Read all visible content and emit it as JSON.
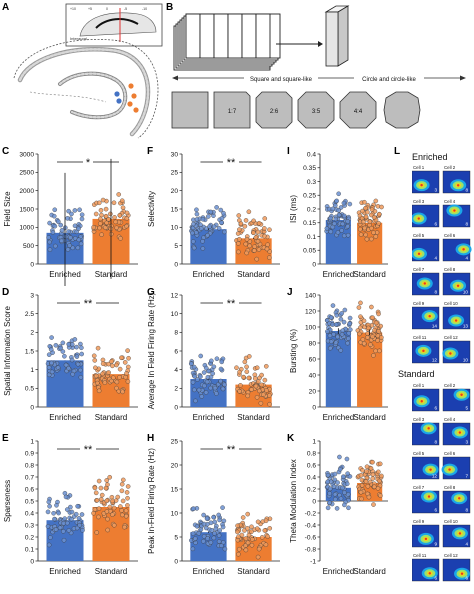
{
  "panels": {
    "A": "A",
    "B": "B",
    "C": "C",
    "D": "D",
    "E": "E",
    "F": "F",
    "G": "G",
    "H": "H",
    "I": "I",
    "J": "J",
    "K": "K",
    "L": "L"
  },
  "panel_a": {
    "inset_labels": [
      "Interaural",
      "+10",
      "+5",
      "0",
      "-5",
      "-10"
    ]
  },
  "panel_b": {
    "left_label": "Square and square-like",
    "right_label": "Circle and circle-like",
    "shapes": [
      "",
      "1:7",
      "2:6",
      "3:5",
      "4:4",
      ""
    ]
  },
  "panel_l": {
    "enriched_title": "Enriched",
    "standard_title": "Standard",
    "enriched_cells": [
      {
        "label": "Cell 1",
        "value": "3"
      },
      {
        "label": "Cell 2",
        "value": "8"
      },
      {
        "label": "Cell 3",
        "value": "6"
      },
      {
        "label": "Cell 4",
        "value": "8"
      },
      {
        "label": "Cell 5",
        "value": "4"
      },
      {
        "label": "Cell 6",
        "value": "4"
      },
      {
        "label": "Cell 7",
        "value": "8"
      },
      {
        "label": "Cell 8",
        "value": "10"
      },
      {
        "label": "Cell 9",
        "value": "14"
      },
      {
        "label": "Cell 10",
        "value": "13"
      },
      {
        "label": "Cell 11",
        "value": "12"
      },
      {
        "label": "Cell 12",
        "value": "10"
      }
    ],
    "standard_cells": [
      {
        "label": "Cell 1",
        "value": "6"
      },
      {
        "label": "Cell 2",
        "value": "5"
      },
      {
        "label": "Cell 3",
        "value": "8"
      },
      {
        "label": "Cell 4",
        "value": "3"
      },
      {
        "label": "Cell 5",
        "value": "12"
      },
      {
        "label": "Cell 6",
        "value": "7"
      },
      {
        "label": "Cell 7",
        "value": "6"
      },
      {
        "label": "Cell 8",
        "value": "8"
      },
      {
        "label": "Cell 9",
        "value": "9"
      },
      {
        "label": "Cell 10",
        "value": "4"
      },
      {
        "label": "Cell 11",
        "value": "6"
      },
      {
        "label": "Cell 12",
        "value": "6"
      }
    ]
  },
  "colors": {
    "enriched_bar": "#4472c4",
    "standard_bar": "#ed7d31",
    "enriched_dot": "#6a8fd0",
    "standard_dot": "#f09a5c"
  },
  "chart_data": [
    {
      "id": "C",
      "type": "bar",
      "ylabel": "Field Size",
      "categories": [
        "Enriched",
        "Standard"
      ],
      "values": [
        850,
        1230
      ],
      "ylim": [
        0,
        3000
      ],
      "ticks": [
        "0",
        "500",
        "1000",
        "1500",
        "2000",
        "2500",
        "3000"
      ],
      "significance": "*"
    },
    {
      "id": "D",
      "type": "bar",
      "ylabel": "Spatial Information Score",
      "categories": [
        "Enriched",
        "Standard"
      ],
      "values": [
        1.25,
        0.88
      ],
      "ylim": [
        0,
        3
      ],
      "ticks": [
        "0",
        "0.5",
        "1",
        "1.5",
        "2",
        "2.5",
        "3"
      ],
      "significance": "**"
    },
    {
      "id": "E",
      "type": "bar",
      "ylabel": "Sparseness",
      "categories": [
        "Enriched",
        "Standard"
      ],
      "values": [
        0.34,
        0.45
      ],
      "ylim": [
        0,
        1
      ],
      "ticks": [
        "0",
        "0.1",
        "0.2",
        "0.3",
        "0.4",
        "0.5",
        "0.6",
        "0.7",
        "0.8",
        "0.9",
        "1"
      ],
      "significance": "**"
    },
    {
      "id": "F",
      "type": "bar",
      "ylabel": "Selectivity",
      "categories": [
        "Enriched",
        "Standard"
      ],
      "values": [
        9.5,
        7.0
      ],
      "ylim": [
        0,
        30
      ],
      "ticks": [
        "0",
        "5",
        "10",
        "15",
        "20",
        "25",
        "30"
      ],
      "significance": "**"
    },
    {
      "id": "G",
      "type": "bar",
      "ylabel": "Average In Field Firing Rate (Hz)",
      "categories": [
        "Enriched",
        "Standard"
      ],
      "values": [
        3.0,
        2.4
      ],
      "ylim": [
        0,
        12
      ],
      "ticks": [
        "0",
        "2",
        "4",
        "6",
        "8",
        "10",
        "12"
      ],
      "significance": "**"
    },
    {
      "id": "H",
      "type": "bar",
      "ylabel": "Peak In-Field Firing Rate (Hz)",
      "categories": [
        "Enriched",
        "Standard"
      ],
      "values": [
        6.0,
        5.0
      ],
      "ylim": [
        0,
        25
      ],
      "ticks": [
        "0",
        "5",
        "10",
        "15",
        "20",
        "25"
      ],
      "significance": "**"
    },
    {
      "id": "I",
      "type": "bar",
      "ylabel": "ISI (ms)",
      "categories": [
        "Enriched",
        "Standard"
      ],
      "values": [
        0.16,
        0.15
      ],
      "ylim": [
        0,
        0.4
      ],
      "ticks": [
        "0",
        "0.05",
        "0.1",
        "0.15",
        "0.2",
        "0.25",
        "0.3",
        "0.35",
        "0.4"
      ],
      "significance": ""
    },
    {
      "id": "J",
      "type": "bar",
      "ylabel": "Bursting (%)",
      "categories": [
        "Enriched",
        "Standard"
      ],
      "values": [
        95,
        93
      ],
      "ylim": [
        0,
        140
      ],
      "ticks": [
        "0",
        "20",
        "40",
        "60",
        "80",
        "100",
        "120",
        "140"
      ],
      "significance": ""
    },
    {
      "id": "K",
      "type": "bar",
      "ylabel": "Theta Modulation Index",
      "categories": [
        "Enriched",
        "Standard"
      ],
      "values": [
        0.22,
        0.3
      ],
      "ylim": [
        -1,
        1
      ],
      "ticks": [
        "-1",
        "-0.8",
        "-0.6",
        "-0.4",
        "-0.2",
        "0",
        "0.2",
        "0.4",
        "0.6",
        "0.8",
        "1"
      ],
      "significance": ""
    }
  ]
}
